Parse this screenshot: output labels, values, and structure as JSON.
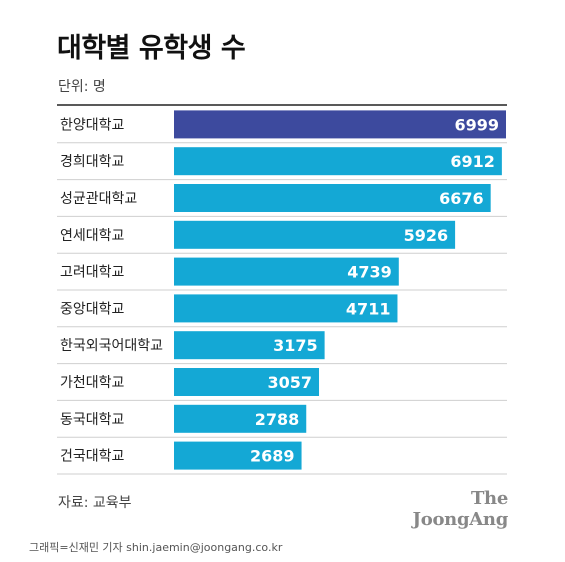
{
  "title": "대학별 유학생 수",
  "unit": "단위: 명",
  "source": "자료: 교육부",
  "brand": "The JoongAng",
  "credit": "그래픽=신재민 기자 shin.jaemin@joongang.co.kr",
  "colors": {
    "highlight": "#3d4a9e",
    "bar": "#14a8d5",
    "label": "#ffffff",
    "divider": "#cfcfcf",
    "rule": "#222222"
  },
  "chart_data": {
    "type": "bar",
    "orientation": "horizontal",
    "categories": [
      "한양대학교",
      "경희대학교",
      "성균관대학교",
      "연세대학교",
      "고려대학교",
      "중앙대학교",
      "한국외국어대학교",
      "가천대학교",
      "동국대학교",
      "건국대학교"
    ],
    "values": [
      6999,
      6912,
      6676,
      5926,
      4739,
      4711,
      3175,
      3057,
      2788,
      2689
    ],
    "highlight_index": 0,
    "xlim": [
      0,
      6999
    ],
    "grid": false,
    "legend": "none"
  }
}
